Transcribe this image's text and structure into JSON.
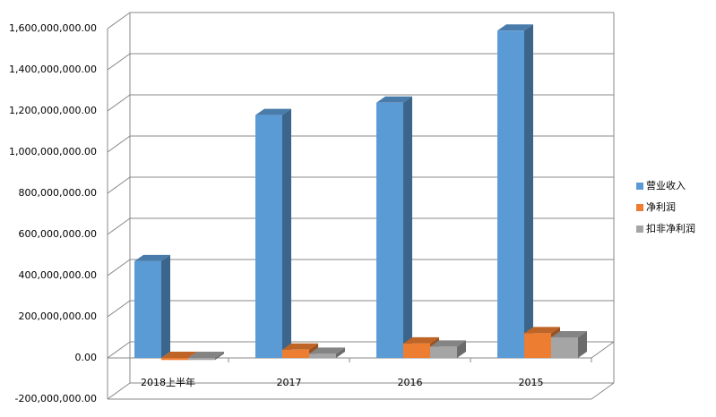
{
  "chart_data": {
    "type": "bar3d",
    "categories": [
      "2018上半年",
      "2017",
      "2016",
      "2015"
    ],
    "series": [
      {
        "name": "营业收入",
        "color": "#5b9bd5",
        "values": [
          470000000,
          1180000000,
          1240000000,
          1590000000
        ]
      },
      {
        "name": "净利润",
        "color": "#ed7d31",
        "values": [
          -10000000,
          40000000,
          70000000,
          120000000
        ]
      },
      {
        "name": "扣非净利润",
        "color": "#a5a5a5",
        "values": [
          -10000000,
          20000000,
          55000000,
          100000000
        ]
      }
    ],
    "ylim": [
      -200000000,
      1600000000
    ],
    "yticks": [
      {
        "value": -200000000,
        "label": "-200,000,000.00"
      },
      {
        "value": 0,
        "label": "0.00"
      },
      {
        "value": 200000000,
        "label": "200,000,000.00"
      },
      {
        "value": 400000000,
        "label": "400,000,000.00"
      },
      {
        "value": 600000000,
        "label": "600,000,000.00"
      },
      {
        "value": 800000000,
        "label": "800,000,000.00"
      },
      {
        "value": 1000000000,
        "label": "1,000,000,000.00"
      },
      {
        "value": 1200000000,
        "label": "1,200,000,000.00"
      },
      {
        "value": 1400000000,
        "label": "1,400,000,000.00"
      },
      {
        "value": 1600000000,
        "label": "1,600,000,000.00"
      }
    ],
    "grid": true,
    "legend": "right"
  }
}
